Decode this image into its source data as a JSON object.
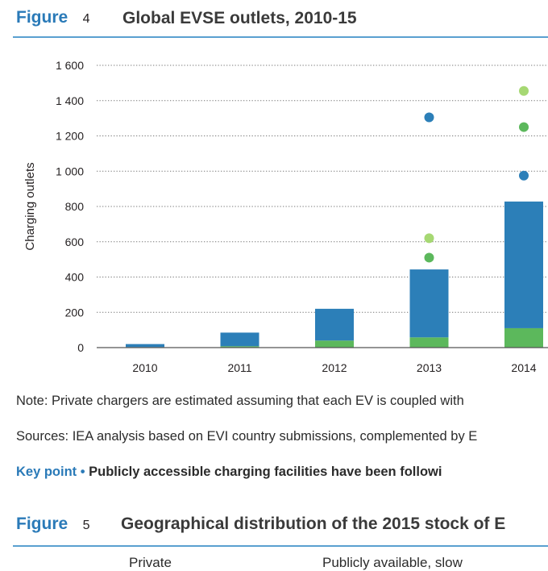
{
  "figure4": {
    "label": "Figure",
    "number": "4",
    "title": "Global EVSE outlets, 2010-15"
  },
  "chart_data": {
    "type": "bar",
    "ylabel": "Charging outlets",
    "ylim": [
      0,
      1600
    ],
    "yticks": [
      "0",
      "200",
      "400",
      "600",
      "800",
      "1 000",
      "1 200",
      "1 400",
      "1 600"
    ],
    "grid": true,
    "categories": [
      "2010",
      "2011",
      "2012",
      "2013",
      "2014"
    ],
    "series": [
      {
        "values": [
          3,
          8,
          40,
          58,
          110
        ],
        "color": "#5cb85c"
      },
      {
        "values": [
          17,
          77,
          180,
          385,
          718
        ],
        "color": "#2c7fb8"
      }
    ],
    "points": [
      {
        "values": [
          null,
          null,
          null,
          510,
          1250
        ],
        "color": "#5cb85c"
      },
      {
        "values": [
          null,
          null,
          null,
          620,
          1455
        ],
        "color": "#a6d873"
      },
      {
        "values": [
          null,
          null,
          null,
          1305,
          975
        ],
        "color": "#2c7fb8"
      }
    ]
  },
  "notes": {
    "note": "Note: Private chargers are estimated assuming that each EV is coupled with",
    "sources": "Sources: IEA analysis based on EVI country submissions, complemented by E",
    "key_label": "Key point •",
    "key_text": "Publicly accessible charging facilities have been followi"
  },
  "figure5": {
    "label": "Figure",
    "number": "5",
    "title": "Geographical distribution of the 2015 stock of E"
  },
  "table_headers": [
    "Private",
    "Publicly available, slow"
  ]
}
